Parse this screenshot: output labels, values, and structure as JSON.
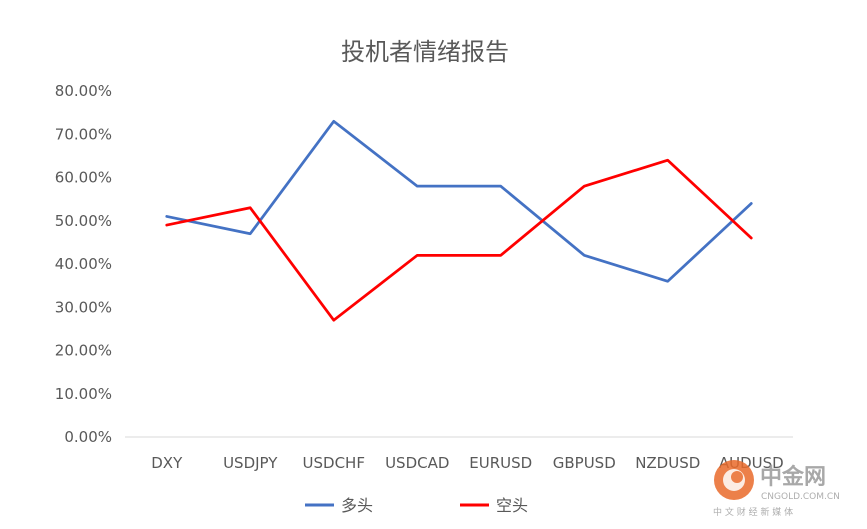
{
  "chart_data": {
    "type": "line",
    "title": "投机者情绪报告",
    "xlabel": "",
    "ylabel": "",
    "categories": [
      "DXY",
      "USDJPY",
      "USDCHF",
      "USDCAD",
      "EURUSD",
      "GBPUSD",
      "NZDUSD",
      "AUDUSD"
    ],
    "ylim": [
      0,
      0.8
    ],
    "yticks": [
      "0.00%",
      "10.00%",
      "20.00%",
      "30.00%",
      "40.00%",
      "50.00%",
      "60.00%",
      "70.00%",
      "80.00%"
    ],
    "grid": false,
    "legend_position": "bottom",
    "series": [
      {
        "name": "多头",
        "color": "#4472C4",
        "values": [
          0.51,
          0.47,
          0.73,
          0.58,
          0.58,
          0.42,
          0.36,
          0.54
        ]
      },
      {
        "name": "空头",
        "color": "#FF0000",
        "values": [
          0.49,
          0.53,
          0.27,
          0.42,
          0.42,
          0.58,
          0.64,
          0.46
        ]
      }
    ]
  },
  "watermark": {
    "brand": "中金网",
    "domain": "CNGOLD.COM.CN",
    "slogan": "中 文 财 经 新 媒 体"
  }
}
